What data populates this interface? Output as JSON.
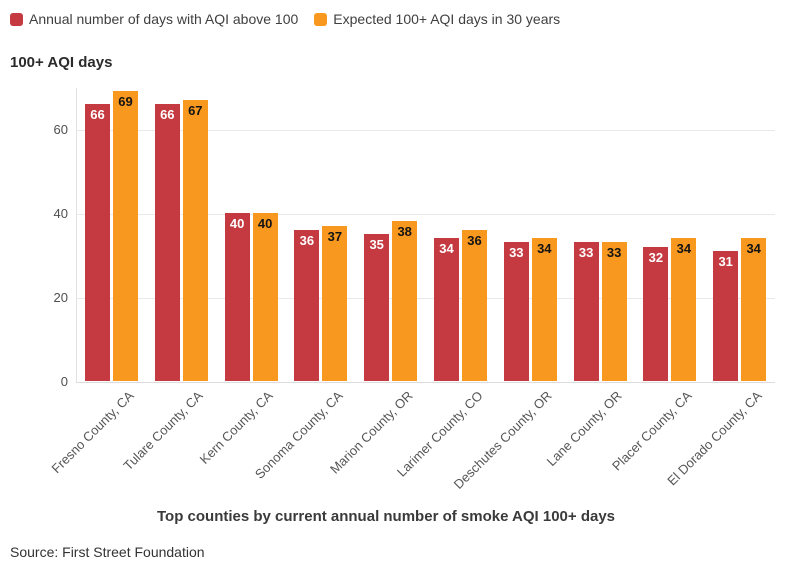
{
  "legend": {
    "items": [
      {
        "label": "Annual number of days with AQI above 100",
        "color": "#c43a40"
      },
      {
        "label": "Expected 100+ AQI days in 30 years",
        "color": "#f9981e"
      }
    ]
  },
  "y_axis_title": "100+ AQI days",
  "x_axis_title": "Top counties by current annual number of smoke AQI 100+ days",
  "source": "Source: First Street Foundation",
  "chart_data": {
    "type": "bar",
    "title": "",
    "ylabel": "100+ AQI days",
    "xlabel": "Top counties by current annual number of smoke AQI 100+ days",
    "categories": [
      "Fresno County, CA",
      "Tulare County, CA",
      "Kern County, CA",
      "Sonoma County, CA",
      "Marion County, OR",
      "Larimer County, CO",
      "Deschutes County, OR",
      "Lane County, OR",
      "Placer County, CA",
      "El Dorado County, CA"
    ],
    "series": [
      {
        "name": "Annual number of days with AQI above 100",
        "color": "#c43a40",
        "label_color": "#ffffff",
        "values": [
          66,
          66,
          40,
          36,
          35,
          34,
          33,
          33,
          32,
          31
        ]
      },
      {
        "name": "Expected 100+ AQI days in 30 years",
        "color": "#f9981e",
        "label_color": "#141414",
        "values": [
          69,
          67,
          40,
          37,
          38,
          36,
          34,
          33,
          34,
          34
        ]
      }
    ],
    "yticks": [
      0,
      20,
      40,
      60
    ],
    "ylim": [
      0,
      70
    ],
    "grid": true,
    "legend_position": "top-left",
    "bar_value_labels": "inside-top"
  },
  "colors": {
    "background": "#ffffff",
    "gridline": "#e9e9e9",
    "axis_line": "#e2e2e2",
    "text": "#3f3f3f"
  }
}
